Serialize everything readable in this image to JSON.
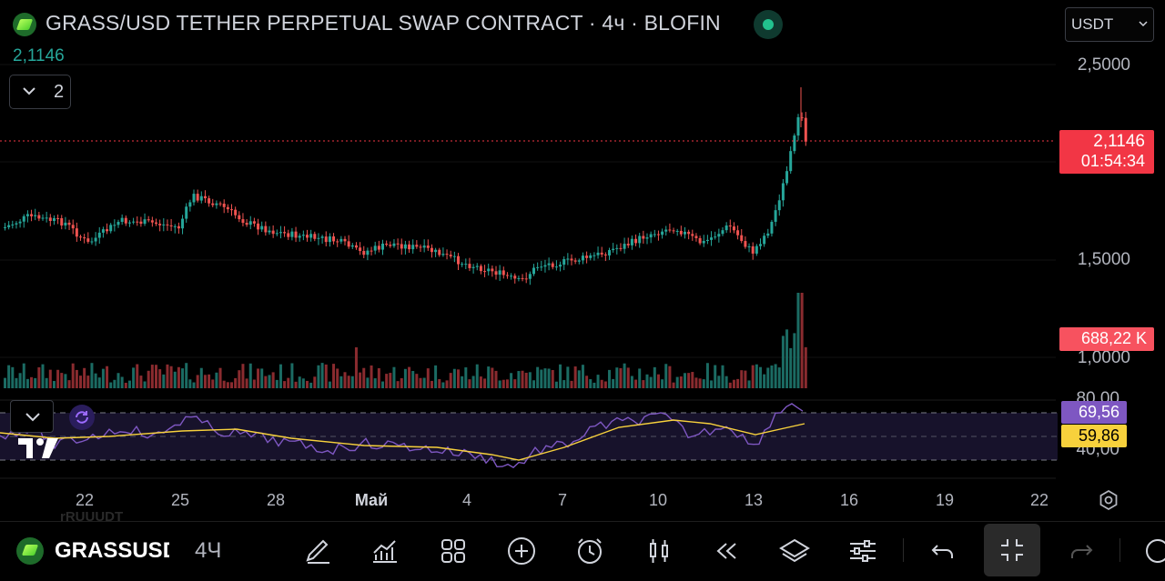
{
  "header": {
    "title": "GRASS/USD TETHER PERPETUAL SWAP CONTRACT · 4ч · BLOFIN",
    "last_price": "2,1146",
    "collapse_count": "2",
    "currency": "USDT"
  },
  "price_axis": {
    "labels": [
      "2,5000",
      "1,5000",
      "1,0000",
      "80,00",
      "40,00"
    ],
    "current_price": "2,1146",
    "countdown": "01:54:34",
    "volume": "688,22 K",
    "rsi_value": "69,56",
    "rsi_ma": "59,86"
  },
  "time_axis": {
    "labels": [
      "22",
      "25",
      "28",
      "Май",
      "4",
      "7",
      "10",
      "13",
      "16",
      "19",
      "22"
    ]
  },
  "bottom_bar": {
    "symbol": "GRASSUSDT",
    "interval": "4Ч",
    "ghost_text": "rRUUUDT",
    "tools": [
      "draw-icon",
      "indicators-icon",
      "layout-icon",
      "add-icon",
      "alert-icon",
      "chart-type-icon",
      "replay-icon",
      "layers-icon",
      "settings-icon",
      "undo-icon",
      "fullscreen-exit-icon",
      "redo-icon"
    ]
  },
  "colors": {
    "up": "#26a69a",
    "down": "#ef5350",
    "rsi_line": "#7e57c2",
    "rsi_ma": "#f7d13c",
    "price_tag": "#f23645"
  }
}
